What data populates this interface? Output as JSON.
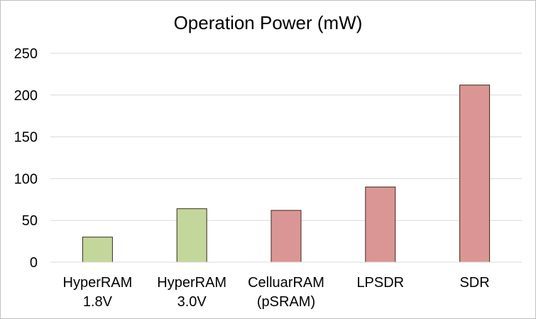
{
  "chart_data": {
    "type": "bar",
    "title": "Operation Power (mW)",
    "categories": [
      [
        "HyperRAM",
        "1.8V"
      ],
      [
        "HyperRAM",
        "3.0V"
      ],
      [
        "CelluarRAM",
        "(pSRAM)"
      ],
      [
        "LPSDR"
      ],
      [
        "SDR"
      ]
    ],
    "values": [
      30,
      64,
      62,
      90,
      212
    ],
    "bar_colors": [
      "#c4d79b",
      "#c4d79b",
      "#da9694",
      "#da9694",
      "#da9694"
    ],
    "bar_outline": "#3a2a1a",
    "ylim": [
      0,
      250
    ],
    "yticks": [
      0,
      50,
      100,
      150,
      200,
      250
    ],
    "grid": true,
    "grid_color": "#d9d9d9",
    "legend": "none"
  }
}
